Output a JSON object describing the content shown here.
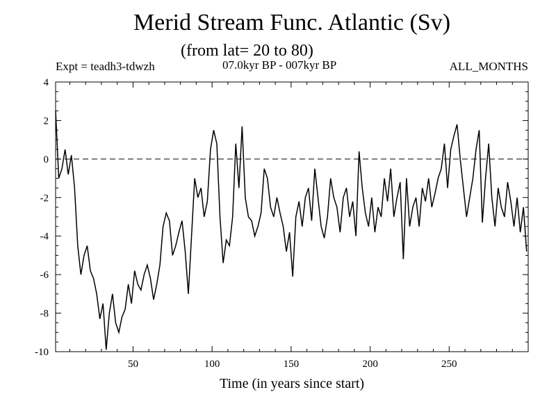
{
  "chart_data": {
    "type": "line",
    "title": "Merid Stream Func. Atlantic (Sv)",
    "subtitle": "(from lat= 20 to 80)",
    "experiment": "Expt = teadh3-tdwzh",
    "period": "07.0kyr BP - 007kyr BP",
    "season": "ALL_MONTHS",
    "xlabel": "Time (in years since start)",
    "ylabel": "",
    "xlim": [
      1,
      300
    ],
    "ylim": [
      -10,
      4
    ],
    "xticks": [
      50,
      100,
      150,
      200,
      250
    ],
    "yticks": [
      4,
      2,
      0,
      -2,
      -4,
      -6,
      -8,
      -10
    ],
    "reference_line": 0,
    "series": [
      {
        "name": "Merid Stream Func. Atlantic",
        "x": [
          1,
          3,
          5,
          7,
          9,
          11,
          13,
          15,
          17,
          19,
          21,
          23,
          25,
          27,
          29,
          31,
          33,
          35,
          37,
          39,
          41,
          43,
          45,
          47,
          49,
          51,
          53,
          55,
          57,
          59,
          61,
          63,
          65,
          67,
          69,
          71,
          73,
          75,
          77,
          79,
          81,
          83,
          85,
          87,
          89,
          91,
          93,
          95,
          97,
          99,
          101,
          103,
          105,
          107,
          109,
          111,
          113,
          115,
          117,
          119,
          121,
          123,
          125,
          127,
          129,
          131,
          133,
          135,
          137,
          139,
          141,
          143,
          145,
          147,
          149,
          151,
          153,
          155,
          157,
          159,
          161,
          163,
          165,
          167,
          169,
          171,
          173,
          175,
          177,
          179,
          181,
          183,
          185,
          187,
          189,
          191,
          193,
          195,
          197,
          199,
          201,
          203,
          205,
          207,
          209,
          211,
          213,
          215,
          217,
          219,
          221,
          223,
          225,
          227,
          229,
          231,
          233,
          235,
          237,
          239,
          241,
          243,
          245,
          247,
          249,
          251,
          253,
          255,
          257,
          259,
          261,
          263,
          265,
          267,
          269,
          271,
          273,
          275,
          277,
          279,
          281,
          283,
          285,
          287,
          289,
          291,
          293,
          295,
          297,
          299
        ],
        "values": [
          2.5,
          -1.0,
          -0.5,
          0.5,
          -0.8,
          0.2,
          -1.5,
          -4.5,
          -6.0,
          -5.0,
          -4.5,
          -5.8,
          -6.2,
          -7.0,
          -8.3,
          -7.5,
          -9.9,
          -8.0,
          -7.0,
          -8.5,
          -9.0,
          -8.2,
          -7.8,
          -6.5,
          -7.5,
          -5.8,
          -6.5,
          -6.8,
          -6.0,
          -5.5,
          -6.2,
          -7.3,
          -6.5,
          -5.5,
          -3.5,
          -2.8,
          -3.2,
          -5.0,
          -4.5,
          -3.8,
          -3.2,
          -4.8,
          -7.0,
          -4.0,
          -1.0,
          -2.0,
          -1.5,
          -3.0,
          -2.2,
          0.5,
          1.5,
          0.8,
          -3.0,
          -5.4,
          -4.2,
          -4.5,
          -3.0,
          0.8,
          -1.5,
          1.7,
          -2.0,
          -3.0,
          -3.2,
          -4.0,
          -3.5,
          -2.8,
          -0.5,
          -1.0,
          -2.5,
          -3.0,
          -2.0,
          -2.8,
          -3.5,
          -4.8,
          -3.8,
          -6.1,
          -3.0,
          -2.2,
          -3.5,
          -2.0,
          -1.5,
          -3.2,
          -0.5,
          -2.0,
          -3.5,
          -4.1,
          -3.0,
          -1.0,
          -2.0,
          -2.5,
          -3.8,
          -2.0,
          -1.5,
          -3.0,
          -2.2,
          -4.0,
          0.4,
          -1.5,
          -2.8,
          -3.5,
          -2.0,
          -3.8,
          -2.5,
          -3.0,
          -1.0,
          -2.2,
          -0.5,
          -3.0,
          -2.0,
          -1.2,
          -5.2,
          -1.0,
          -3.5,
          -2.5,
          -2.0,
          -3.5,
          -1.5,
          -2.2,
          -1.0,
          -2.5,
          -1.8,
          -1.0,
          -0.5,
          0.8,
          -1.5,
          0.5,
          1.2,
          1.8,
          0.0,
          -1.5,
          -3.0,
          -2.0,
          -1.0,
          0.5,
          1.5,
          -3.3,
          -1.0,
          0.8,
          -2.0,
          -3.5,
          -1.5,
          -2.5,
          -3.0,
          -1.2,
          -2.2,
          -3.5,
          -2.0,
          -3.8,
          -2.5,
          -4.8
        ]
      }
    ]
  }
}
